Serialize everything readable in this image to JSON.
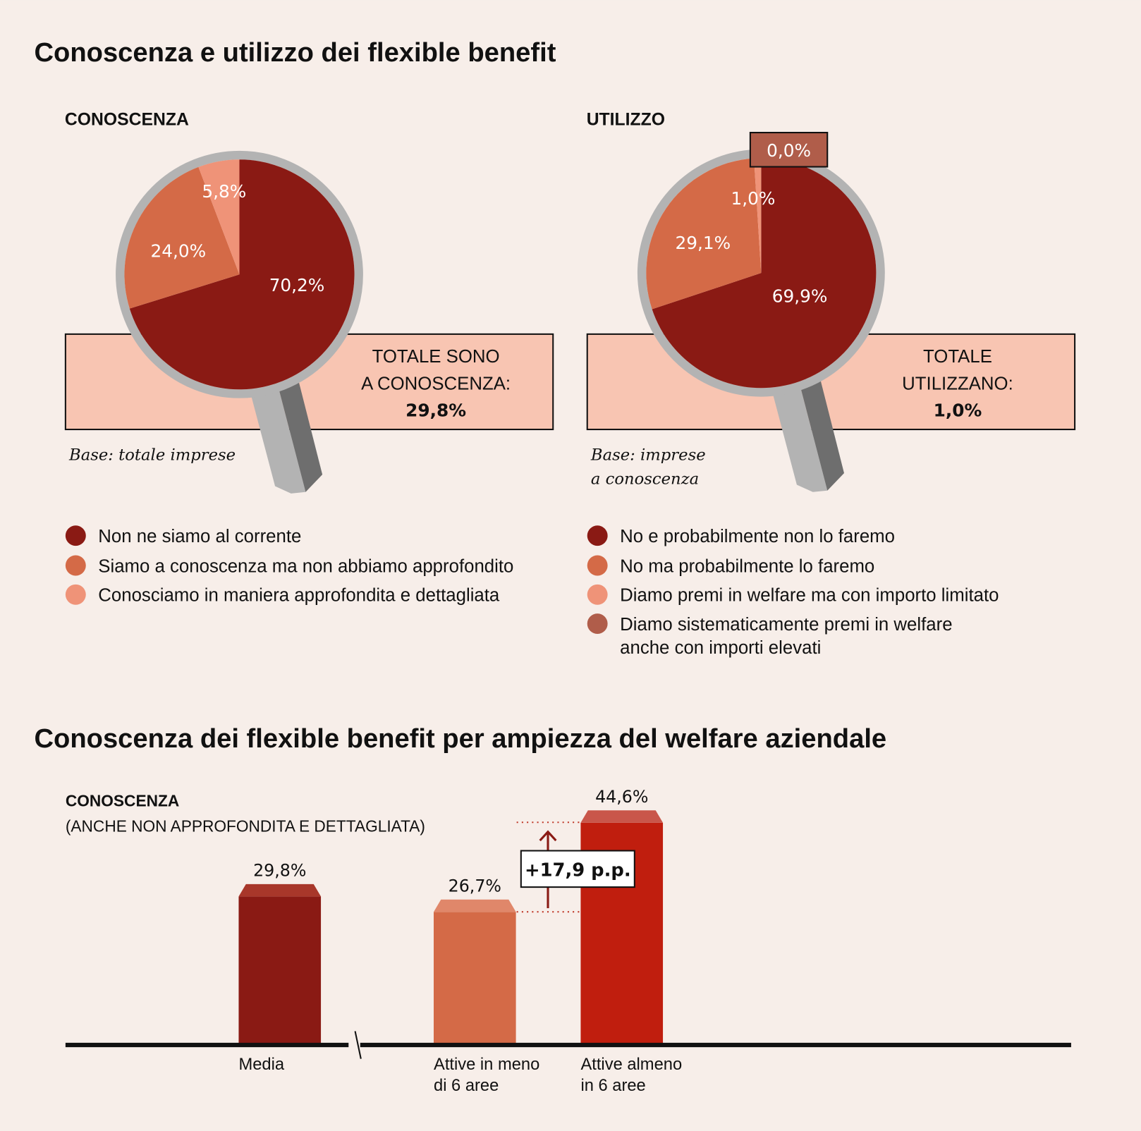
{
  "title1": "Conoscenza e utilizzo dei flexible benefit",
  "title2": "Conoscenza dei flexible benefit per ampiezza del welfare aziendale",
  "colors": {
    "dark": "#8a1a14",
    "mid": "#d46a47",
    "light": "#ef9378",
    "brick": "#b05d4a",
    "bright": "#c01e0e",
    "bg": "#f7eee9",
    "box": "#f8c5b2"
  },
  "chart_data": [
    {
      "type": "pie",
      "title": "CONOSCENZA",
      "slices": [
        {
          "label": "Non ne siamo al corrente",
          "value": 70.2,
          "text": "70,2%"
        },
        {
          "label": "Siamo a conoscenza ma non abbiamo approfondito",
          "value": 24.0,
          "text": "24,0%"
        },
        {
          "label": "Conosciamo in maniera approfondita e dettagliata",
          "value": 5.8,
          "text": "5,8%"
        }
      ],
      "total_line1": "TOTALE SONO",
      "total_line2": "A CONOSCENZA:",
      "total_value": "29,8%",
      "base_line1": "Base: totale imprese"
    },
    {
      "type": "pie",
      "title": "UTILIZZO",
      "slices": [
        {
          "label": "No e probabilmente non lo faremo",
          "value": 69.9,
          "text": "69,9%"
        },
        {
          "label": "No ma probabilmente lo faremo",
          "value": 29.1,
          "text": "29,1%"
        },
        {
          "label": "Diamo premi in welfare ma con importo limitato",
          "value": 1.0,
          "text": "1,0%"
        },
        {
          "label": "Diamo sistematicamente premi in welfare anche con importi elevati",
          "label_line1": "Diamo sistematicamente premi in welfare",
          "label_line2": "anche con importi elevati",
          "value": 0.0,
          "text": "0,0%"
        }
      ],
      "total_line1": "TOTALE",
      "total_line2": "UTILIZZANO:",
      "total_value": "1,0%",
      "base_line1": "Base: imprese",
      "base_line2": "a conoscenza"
    },
    {
      "type": "bar",
      "title": "CONOSCENZA",
      "subtitle": "(ANCHE NON APPROFONDITA E DETTAGLIATA)",
      "categories": [
        {
          "line1": "Media",
          "line2": ""
        },
        {
          "line1": "Attive in meno",
          "line2": "di 6 aree"
        },
        {
          "line1": "Attive almeno",
          "line2": "in 6 aree"
        }
      ],
      "values": [
        29.8,
        26.7,
        44.6
      ],
      "value_labels": [
        "29,8%",
        "26,7%",
        "44,6%"
      ],
      "annotation": "+17,9 p.p."
    }
  ]
}
